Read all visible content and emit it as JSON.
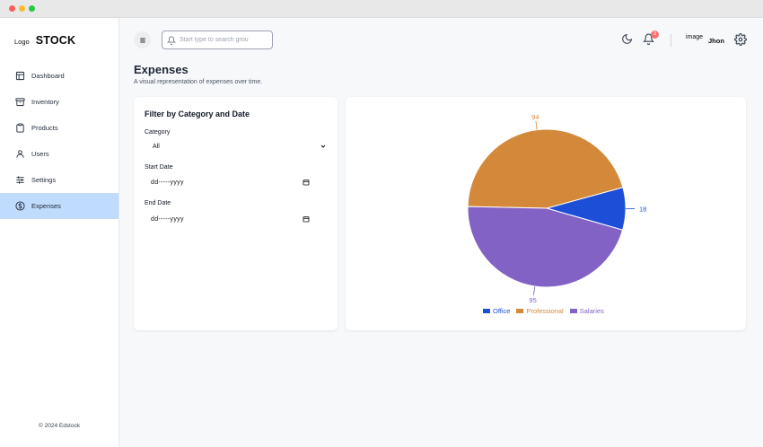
{
  "brand": {
    "logo_text": "Logo",
    "name": "STOCK"
  },
  "sidebar": {
    "items": [
      {
        "label": "Dashboard",
        "icon": "layout-icon"
      },
      {
        "label": "Inventory",
        "icon": "archive-icon"
      },
      {
        "label": "Products",
        "icon": "clipboard-icon"
      },
      {
        "label": "Users",
        "icon": "user-icon"
      },
      {
        "label": "Settings",
        "icon": "sliders-icon"
      },
      {
        "label": "Expenses",
        "icon": "dollar-circle-icon",
        "active": true
      }
    ],
    "footer": "© 2024 Edstock"
  },
  "topbar": {
    "search_placeholder": "Start type to search grou",
    "notification_count": "3",
    "avatar_text": "image",
    "username": "Jhon"
  },
  "page": {
    "title": "Expenses",
    "subtitle": "A visual representation of expenses over time."
  },
  "filter": {
    "title": "Filter by Category and Date",
    "category_label": "Category",
    "category_value": "All",
    "start_label": "Start Date",
    "start_value": "dd-----yyyy",
    "end_label": "End Date",
    "end_value": "dd-----yyyy"
  },
  "chart_data": {
    "type": "pie",
    "categories": [
      "Office",
      "Professional",
      "Salaries"
    ],
    "values": [
      18,
      94,
      95
    ],
    "colors": [
      "#1d4ed8",
      "#d4893a",
      "#8262c5"
    ],
    "legend": "bottom"
  },
  "colors": {
    "accent_active": "#bfdbfe",
    "badge": "#f87171"
  }
}
